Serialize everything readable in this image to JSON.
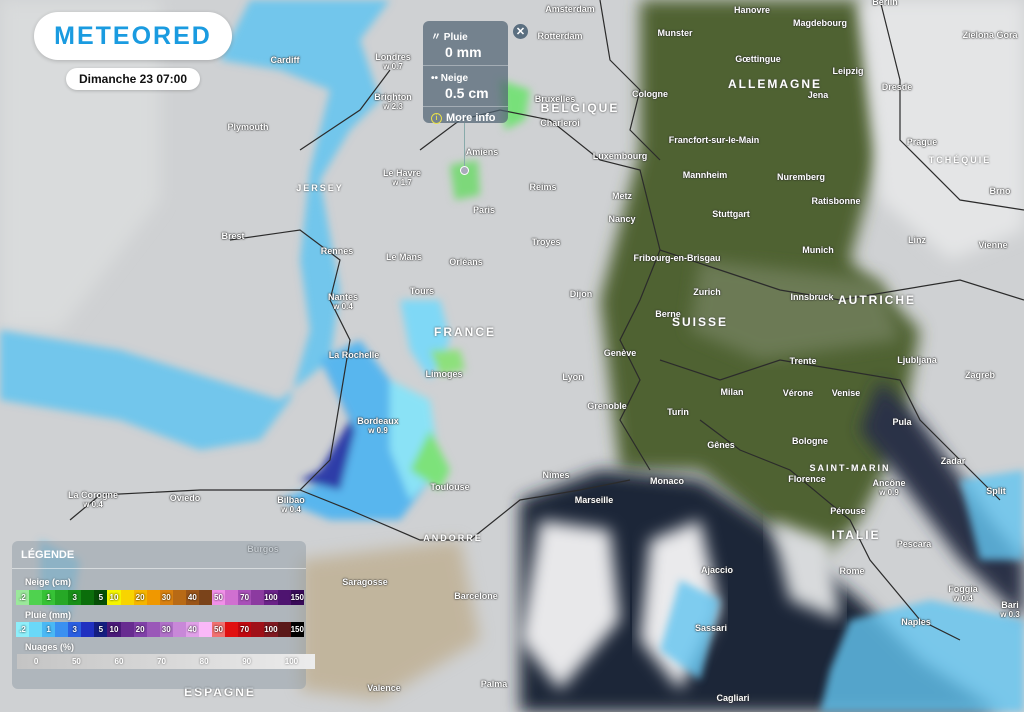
{
  "brand": {
    "logo": "METEORED",
    "brand_color": "#1a9be0"
  },
  "date": "Dimanche 23 07:00",
  "tooltip": {
    "rain_label": "Pluie",
    "rain_value": "0 mm",
    "snow_label": "Neige",
    "snow_value": "0.5 cm",
    "more_info": "More info",
    "rain_icon": "rain-icon",
    "snow_icon": "snow-icon",
    "info_icon": "info-icon",
    "close": "✕"
  },
  "legend": {
    "title": "LÉGENDE",
    "snow_label": "Neige (cm)",
    "snow_scale": [
      {
        "t": ".2",
        "c": "#9be89b"
      },
      {
        "t": "",
        "c": "#4fd24f"
      },
      {
        "t": "1",
        "c": "#36c236"
      },
      {
        "t": "",
        "c": "#26a826"
      },
      {
        "t": "3",
        "c": "#178f17"
      },
      {
        "t": "",
        "c": "#0b6e0b"
      },
      {
        "t": "5",
        "c": "#064f06"
      },
      {
        "t": "10",
        "c": "#f5f500"
      },
      {
        "t": "",
        "c": "#f8d400"
      },
      {
        "t": "20",
        "c": "#f5b500"
      },
      {
        "t": "",
        "c": "#f09800"
      },
      {
        "t": "30",
        "c": "#d88010"
      },
      {
        "t": "",
        "c": "#b86a15"
      },
      {
        "t": "40",
        "c": "#9a5518"
      },
      {
        "t": "",
        "c": "#7a431a"
      },
      {
        "t": "50",
        "c": "#f090e8"
      },
      {
        "t": "",
        "c": "#d070d0"
      },
      {
        "t": "70",
        "c": "#a850b8"
      },
      {
        "t": "",
        "c": "#8c3aa0"
      },
      {
        "t": "100",
        "c": "#6a2288"
      },
      {
        "t": "",
        "c": "#4e1470"
      },
      {
        "t": "150",
        "c": "#380a58"
      }
    ],
    "rain_label": "Pluie (mm)",
    "rain_scale": [
      {
        "t": ".2",
        "c": "#8eeefa"
      },
      {
        "t": "",
        "c": "#6ad8f8"
      },
      {
        "t": "1",
        "c": "#4ab8f4"
      },
      {
        "t": "",
        "c": "#3a90f0"
      },
      {
        "t": "3",
        "c": "#2a5ee0"
      },
      {
        "t": "",
        "c": "#2030c0"
      },
      {
        "t": "5",
        "c": "#141e80"
      },
      {
        "t": "10",
        "c": "#4a1a78"
      },
      {
        "t": "",
        "c": "#682c90"
      },
      {
        "t": "20",
        "c": "#8040a8"
      },
      {
        "t": "",
        "c": "#9a58b8"
      },
      {
        "t": "30",
        "c": "#b070c8"
      },
      {
        "t": "",
        "c": "#c888d8"
      },
      {
        "t": "40",
        "c": "#e0a0e8"
      },
      {
        "t": "",
        "c": "#fab8f8"
      },
      {
        "t": "50",
        "c": "#f07070"
      },
      {
        "t": "",
        "c": "#e01010"
      },
      {
        "t": "70",
        "c": "#c00810"
      },
      {
        "t": "",
        "c": "#a01018"
      },
      {
        "t": "100",
        "c": "#801820"
      },
      {
        "t": "",
        "c": "#5a1818"
      },
      {
        "t": "150",
        "c": "#000000"
      }
    ],
    "clouds_label": "Nuages (%)",
    "clouds_scale": [
      "0",
      "50",
      "60",
      "70",
      "80",
      "90",
      "100"
    ]
  },
  "cities": [
    {
      "n": "Londres",
      "v": "w 0.7"
    },
    {
      "n": "Brighton",
      "v": "w 2.3"
    },
    {
      "n": "Cardiff"
    },
    {
      "n": "Plymouth"
    },
    {
      "n": "Amsterdam"
    },
    {
      "n": "Rotterdam"
    },
    {
      "n": "Bruxelles"
    },
    {
      "n": "Charleroi"
    },
    {
      "n": "Amiens"
    },
    {
      "n": "Le Havre",
      "v": "w 1.7"
    },
    {
      "n": "Paris"
    },
    {
      "n": "Reims"
    },
    {
      "n": "Rennes"
    },
    {
      "n": "Le Mans"
    },
    {
      "n": "Orléans"
    },
    {
      "n": "Troyes"
    },
    {
      "n": "Brest"
    },
    {
      "n": "Nantes",
      "v": "w 0.4"
    },
    {
      "n": "Tours"
    },
    {
      "n": "Dijon"
    },
    {
      "n": "La Rochelle"
    },
    {
      "n": "Limoges"
    },
    {
      "n": "Lyon"
    },
    {
      "n": "Genève"
    },
    {
      "n": "Grenoble"
    },
    {
      "n": "Bordeaux",
      "v": "w 0.9"
    },
    {
      "n": "Toulouse"
    },
    {
      "n": "Nîmes"
    },
    {
      "n": "Marseille"
    },
    {
      "n": "Monaco"
    },
    {
      "n": "Bilbao",
      "v": "w 0.4"
    },
    {
      "n": "Oviedo"
    },
    {
      "n": "La Corogne",
      "v": "w 0.4"
    },
    {
      "n": "Burgos"
    },
    {
      "n": "Saragosse"
    },
    {
      "n": "Barcelone"
    },
    {
      "n": "Valence"
    },
    {
      "n": "Palma"
    },
    {
      "n": "Munster"
    },
    {
      "n": "Hanovre"
    },
    {
      "n": "Magdebourg"
    },
    {
      "n": "Berlin"
    },
    {
      "n": "Gœttingue"
    },
    {
      "n": "Leipzig"
    },
    {
      "n": "Jena"
    },
    {
      "n": "Dresde"
    },
    {
      "n": "Cologne"
    },
    {
      "n": "Francfort-sur-le-Main"
    },
    {
      "n": "Luxembourg"
    },
    {
      "n": "Metz"
    },
    {
      "n": "Nancy"
    },
    {
      "n": "Mannheim"
    },
    {
      "n": "Nuremberg"
    },
    {
      "n": "Stuttgart"
    },
    {
      "n": "Ratisbonne"
    },
    {
      "n": "Prague"
    },
    {
      "n": "Fribourg-en-Brisgau"
    },
    {
      "n": "Munich"
    },
    {
      "n": "Linz"
    },
    {
      "n": "Vienne"
    },
    {
      "n": "Brno"
    },
    {
      "n": "Zurich"
    },
    {
      "n": "Innsbruck"
    },
    {
      "n": "Berne"
    },
    {
      "n": "Trente"
    },
    {
      "n": "Ljubljana"
    },
    {
      "n": "Zagreb"
    },
    {
      "n": "Milan"
    },
    {
      "n": "Vérone"
    },
    {
      "n": "Venise"
    },
    {
      "n": "Turin"
    },
    {
      "n": "Gênes"
    },
    {
      "n": "Bologne"
    },
    {
      "n": "Pula"
    },
    {
      "n": "Florence"
    },
    {
      "n": "Ancône",
      "v": "w 0.9"
    },
    {
      "n": "Zadar"
    },
    {
      "n": "Split"
    },
    {
      "n": "Pérouse"
    },
    {
      "n": "Pescara"
    },
    {
      "n": "Ajaccio"
    },
    {
      "n": "Rome"
    },
    {
      "n": "Sassari"
    },
    {
      "n": "Naples"
    },
    {
      "n": "Foggia",
      "v": "w 0.4"
    },
    {
      "n": "Bari",
      "v": "w 0.3"
    },
    {
      "n": "Cagliari"
    },
    {
      "n": "Zielona Gora"
    }
  ],
  "countries": [
    "FRANCE",
    "ALLEMAGNE",
    "SUISSE",
    "AUTRICHE",
    "ITALIE",
    "BELGIQUE",
    "ESPAGNE",
    "SAINT-MARIN",
    "JERSEY",
    "ANDORRE",
    "TCHÉQUIE"
  ]
}
